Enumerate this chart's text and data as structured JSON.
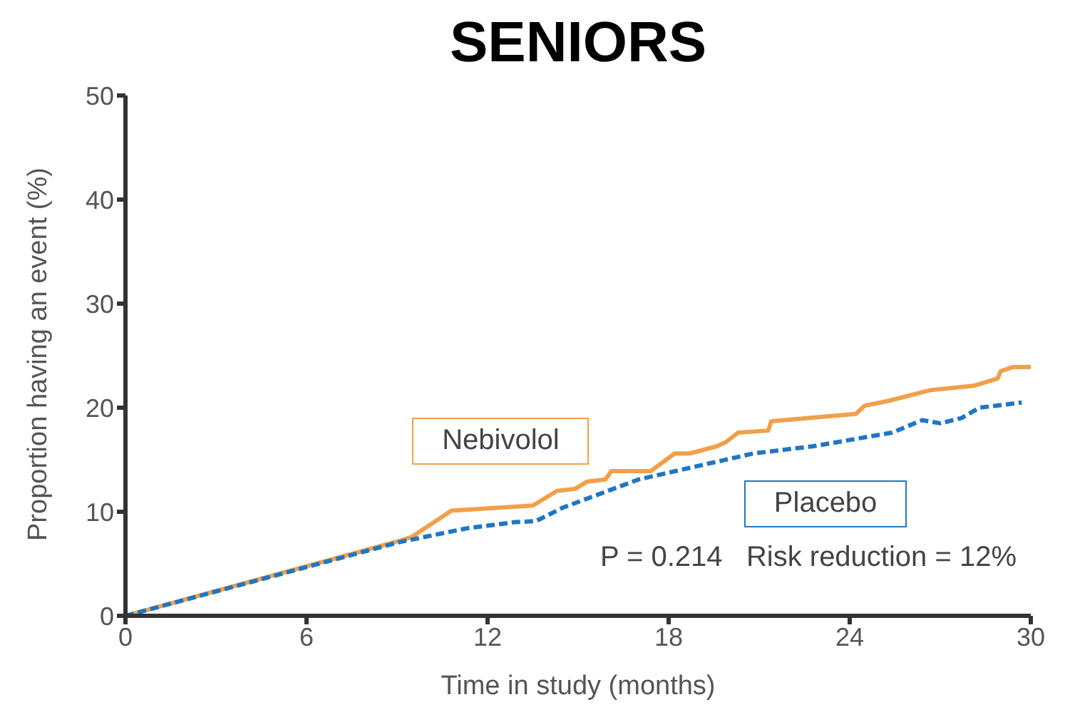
{
  "chart_data": {
    "type": "line",
    "title": "SENIORS",
    "xlabel": "Time in study (months)",
    "ylabel": "Proportion having an event (%)",
    "xlim": [
      0,
      30
    ],
    "xticks": [
      0,
      6,
      12,
      18,
      24,
      30
    ],
    "ylim": [
      0,
      50
    ],
    "yticks": [
      0,
      10,
      20,
      30,
      40,
      50
    ],
    "grid": false,
    "legend": false,
    "marker": "none",
    "annotations": [
      "P = 0.214   Risk reduction = 12%"
    ],
    "series": [
      {
        "name": "Nebivolol",
        "color": "#f0a04b",
        "line_style": "solid",
        "x": [
          0,
          9.2,
          9.5,
          10.8,
          13.5,
          14.3,
          14.9,
          15.3,
          15.9,
          16.1,
          17.4,
          18.2,
          18.7,
          19.6,
          19.9,
          20.3,
          21.3,
          21.4,
          24.2,
          24.5,
          25.2,
          26.7,
          28.1,
          28.9,
          29.0,
          29.4,
          30
        ],
        "values": [
          0,
          7.3,
          7.6,
          10.1,
          10.6,
          12.0,
          12.2,
          12.9,
          13.1,
          13.9,
          13.9,
          15.6,
          15.6,
          16.3,
          16.7,
          17.6,
          17.8,
          18.7,
          19.4,
          20.2,
          20.6,
          21.7,
          22.1,
          22.8,
          23.5,
          23.9,
          23.9
        ]
      },
      {
        "name": "Placebo",
        "color": "#1f77c4",
        "line_style": "dashed",
        "x": [
          0,
          9.1,
          11.3,
          12.9,
          13.6,
          14.5,
          17.0,
          20.8,
          22.8,
          25.4,
          26.4,
          27.0,
          27.7,
          28.3,
          29.7
        ],
        "values": [
          0,
          7.1,
          8.4,
          9.0,
          9.1,
          10.4,
          13.1,
          15.6,
          16.3,
          17.6,
          18.8,
          18.5,
          19.0,
          20.0,
          20.5
        ]
      }
    ]
  }
}
